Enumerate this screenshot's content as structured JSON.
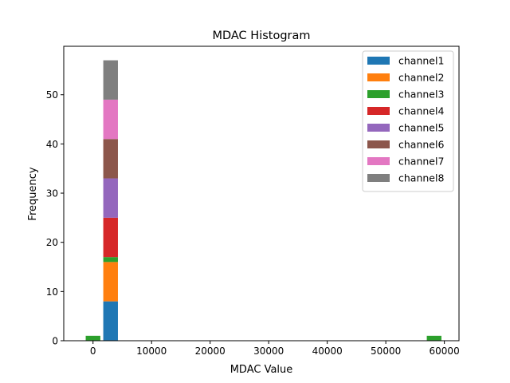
{
  "chart_data": {
    "type": "bar",
    "title": "MDAC Histogram",
    "xlabel": "MDAC Value",
    "ylabel": "Frequency",
    "stacked": true,
    "xlim": [
      -5000,
      62500
    ],
    "ylim": [
      0,
      59.85
    ],
    "xticks": [
      0,
      10000,
      20000,
      30000,
      40000,
      50000,
      60000
    ],
    "yticks": [
      0,
      10,
      20,
      30,
      40,
      50
    ],
    "grid": false,
    "legend_position": "top-right",
    "bins": [
      {
        "x0": -1250,
        "x1": 1250
      },
      {
        "x0": 1750,
        "x1": 4250
      },
      {
        "x0": 57000,
        "x1": 59500
      }
    ],
    "series": [
      {
        "name": "channel1",
        "color": "#1f77b4",
        "values": [
          0,
          8,
          0
        ]
      },
      {
        "name": "channel2",
        "color": "#ff7f0e",
        "values": [
          0,
          8,
          0
        ]
      },
      {
        "name": "channel3",
        "color": "#2ca02c",
        "values": [
          1,
          1,
          1
        ]
      },
      {
        "name": "channel4",
        "color": "#d62728",
        "values": [
          0,
          8,
          0
        ]
      },
      {
        "name": "channel5",
        "color": "#9467bd",
        "values": [
          0,
          8,
          0
        ]
      },
      {
        "name": "channel6",
        "color": "#8c564b",
        "values": [
          0,
          8,
          0
        ]
      },
      {
        "name": "channel7",
        "color": "#e377c2",
        "values": [
          0,
          8,
          0
        ]
      },
      {
        "name": "channel8",
        "color": "#7f7f7f",
        "values": [
          0,
          8,
          0
        ]
      }
    ]
  }
}
